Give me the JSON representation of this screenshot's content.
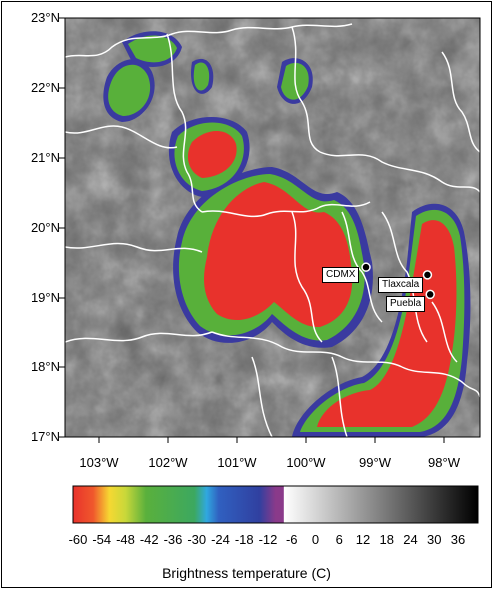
{
  "map": {
    "lat_labels": [
      "23°N",
      "22°N",
      "21°N",
      "20°N",
      "19°N",
      "18°N",
      "17°N"
    ],
    "lon_labels": [
      "103°W",
      "102°W",
      "101°W",
      "100°W",
      "99°W",
      "98°W"
    ],
    "cities": [
      {
        "name": "CDMX",
        "lon": -99.13,
        "lat": 19.43
      },
      {
        "name": "Tlaxcala",
        "lon": -98.24,
        "lat": 19.32
      },
      {
        "name": "Puebla",
        "lon": -98.2,
        "lat": 19.04
      }
    ]
  },
  "colorbar": {
    "ticks": [
      "-60",
      "-54",
      "-48",
      "-42",
      "-36",
      "-30",
      "-24",
      "-18",
      "-12",
      "-6",
      "0",
      "6",
      "12",
      "18",
      "24",
      "30",
      "36"
    ],
    "title": "Brightness temperature (C)",
    "colors": [
      "#e8322c",
      "#f6d832",
      "#5ab03c",
      "#30a8e0",
      "#3040a0",
      "#8a3a8a",
      "#ffffff",
      "#000000"
    ]
  }
}
